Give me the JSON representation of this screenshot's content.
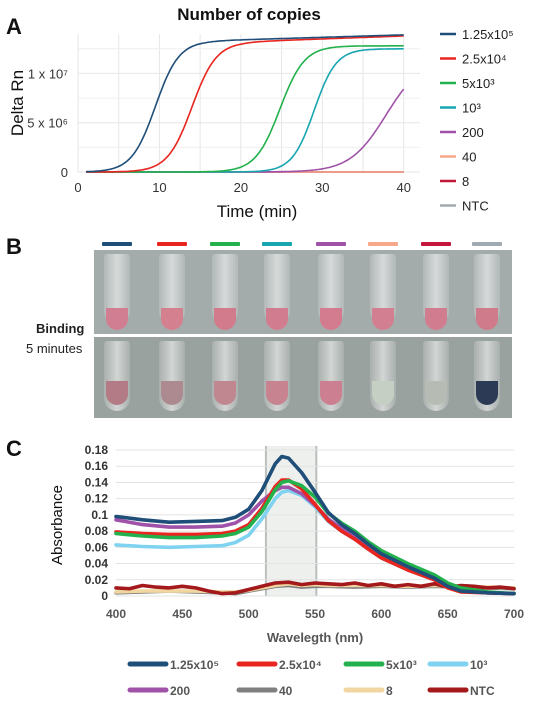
{
  "panels": {
    "a": "A",
    "b": "B",
    "c": "C"
  },
  "panel_b": {
    "binding_label": "Binding",
    "time_label": "5 minutes",
    "tube_colors": [
      "#1f4e79",
      "#e8251f",
      "#22b14c",
      "#17a5b0",
      "#a052a8",
      "#f7a78a",
      "#c4163a",
      "#a0aab0"
    ],
    "top_row_liquid": [
      "#d27e92",
      "#d5808f",
      "#d27b8d",
      "#d27d8f",
      "#d37c8f",
      "#d37f92",
      "#d27d8f",
      "#d07b8c"
    ],
    "bottom_row_liquid": [
      "#b27b86",
      "#ad8a90",
      "#c08790",
      "#c88390",
      "#cc7f90",
      "#c6cfc4",
      "#b6bcb3",
      "#2c3a55"
    ]
  },
  "chart_data": [
    {
      "type": "line",
      "title": "Number of copies",
      "xlabel": "Time (min)",
      "ylabel": "Delta Rn",
      "xlim": [
        0,
        42
      ],
      "ylim": [
        0,
        14000000
      ],
      "x_ticks": [
        0,
        10,
        20,
        30,
        40
      ],
      "y_ticks": [
        {
          "value": 0,
          "label": "0"
        },
        {
          "value": 5000000,
          "label": "5 x 10⁶"
        },
        {
          "value": 10000000,
          "label": "1 x 10⁷"
        }
      ],
      "grid": true,
      "legend_position": "right",
      "series": [
        {
          "name": "1.25x10⁵",
          "color": "#1f4e79",
          "sigmoid": {
            "max": 13300000,
            "mid": 9.5,
            "slope": 1.45,
            "drift": 25000
          }
        },
        {
          "name": "2.5x10⁴",
          "color": "#e8251f",
          "sigmoid": {
            "max": 13200000,
            "mid": 14.0,
            "slope": 1.5,
            "drift": 30000
          }
        },
        {
          "name": "5x10³",
          "color": "#22b14c",
          "sigmoid": {
            "max": 12800000,
            "mid": 24.8,
            "slope": 1.5,
            "drift": 0
          }
        },
        {
          "name": "10³",
          "color": "#17a5b0",
          "sigmoid": {
            "max": 12500000,
            "mid": 29.0,
            "slope": 1.35,
            "drift": 0
          }
        },
        {
          "name": "200",
          "color": "#a052a8",
          "sigmoid": {
            "max": 11500000,
            "mid": 37.8,
            "slope": 2.2,
            "drift": 0
          }
        },
        {
          "name": "40",
          "color": "#f7a78a",
          "sigmoid": {
            "max": 0,
            "mid": 0,
            "slope": 1,
            "drift": 0
          }
        },
        {
          "name": "8",
          "color": "#c4163a",
          "sigmoid": {
            "max": 0,
            "mid": 0,
            "slope": 1,
            "drift": 0
          }
        },
        {
          "name": "NTC",
          "color": "#a0aab0",
          "sigmoid": {
            "max": 0,
            "mid": 0,
            "slope": 1,
            "drift": 0
          }
        }
      ],
      "x_start": 1,
      "x_end": 40
    },
    {
      "type": "line",
      "xlabel": "Wavelegth (nm)",
      "ylabel": "Absorbance",
      "xlim": [
        400,
        700
      ],
      "ylim": [
        0,
        0.18
      ],
      "x_ticks": [
        400,
        450,
        500,
        550,
        600,
        650,
        700
      ],
      "y_ticks": [
        0,
        0.02,
        0.04,
        0.06,
        0.08,
        0.1,
        0.12,
        0.14,
        0.16,
        0.18
      ],
      "y_tick_labels": [
        "0",
        "0.02",
        "0.04",
        "0.06",
        "0.08",
        "0.1",
        "0.12",
        "0.14",
        "0.16",
        "0.18"
      ],
      "highlight_band": [
        513,
        551
      ],
      "grid": true,
      "legend_position": "bottom",
      "series": [
        {
          "name": "1.25x10⁵",
          "color": "#1f4e79",
          "x": [
            400,
            420,
            440,
            460,
            480,
            490,
            500,
            510,
            520,
            525,
            530,
            540,
            550,
            560,
            570,
            580,
            590,
            600,
            620,
            640,
            650,
            660,
            680,
            700
          ],
          "y": [
            0.098,
            0.094,
            0.091,
            0.092,
            0.093,
            0.097,
            0.107,
            0.13,
            0.163,
            0.172,
            0.17,
            0.152,
            0.128,
            0.103,
            0.088,
            0.077,
            0.064,
            0.052,
            0.036,
            0.022,
            0.012,
            0.006,
            0.004,
            0.003
          ]
        },
        {
          "name": "2.5x10⁴",
          "color": "#e8251f",
          "x": [
            400,
            420,
            440,
            460,
            480,
            490,
            500,
            510,
            520,
            525,
            530,
            540,
            550,
            560,
            570,
            580,
            590,
            600,
            620,
            640,
            650,
            660,
            680,
            700
          ],
          "y": [
            0.079,
            0.077,
            0.076,
            0.076,
            0.077,
            0.08,
            0.088,
            0.108,
            0.135,
            0.143,
            0.143,
            0.132,
            0.113,
            0.093,
            0.08,
            0.07,
            0.058,
            0.047,
            0.032,
            0.02,
            0.01,
            0.005,
            0.004,
            0.003
          ]
        },
        {
          "name": "5x10³",
          "color": "#22b14c",
          "x": [
            400,
            420,
            440,
            460,
            480,
            490,
            500,
            510,
            520,
            525,
            530,
            540,
            550,
            560,
            570,
            580,
            590,
            600,
            620,
            640,
            650,
            660,
            680,
            700
          ],
          "y": [
            0.077,
            0.074,
            0.072,
            0.072,
            0.074,
            0.077,
            0.085,
            0.104,
            0.131,
            0.14,
            0.142,
            0.136,
            0.122,
            0.102,
            0.09,
            0.08,
            0.067,
            0.056,
            0.04,
            0.026,
            0.016,
            0.01,
            0.005,
            0.003
          ]
        },
        {
          "name": "10³",
          "color": "#7fd3f0",
          "x": [
            400,
            420,
            440,
            460,
            480,
            490,
            500,
            510,
            520,
            525,
            530,
            540,
            550,
            560,
            570,
            580,
            590,
            600,
            620,
            640,
            650,
            660,
            680,
            700
          ],
          "y": [
            0.063,
            0.061,
            0.06,
            0.061,
            0.062,
            0.066,
            0.075,
            0.095,
            0.12,
            0.128,
            0.13,
            0.124,
            0.11,
            0.092,
            0.08,
            0.07,
            0.058,
            0.047,
            0.032,
            0.02,
            0.012,
            0.007,
            0.004,
            0.003
          ]
        },
        {
          "name": "200",
          "color": "#a052a8",
          "x": [
            400,
            420,
            440,
            460,
            480,
            490,
            500,
            510,
            520,
            525,
            530,
            540,
            550,
            560,
            570,
            580,
            590,
            600,
            620,
            640,
            650,
            660,
            680,
            700
          ],
          "y": [
            0.094,
            0.088,
            0.085,
            0.085,
            0.086,
            0.09,
            0.1,
            0.117,
            0.13,
            0.134,
            0.134,
            0.126,
            0.112,
            0.095,
            0.083,
            0.073,
            0.06,
            0.049,
            0.034,
            0.021,
            0.012,
            0.007,
            0.004,
            0.003
          ]
        },
        {
          "name": "40",
          "color": "#7f7f7f",
          "x": [
            400,
            420,
            440,
            460,
            480,
            490,
            500,
            510,
            520,
            530,
            540,
            550,
            560,
            580,
            600,
            620,
            640,
            660,
            680,
            700
          ],
          "y": [
            0.004,
            0.005,
            0.006,
            0.005,
            0.004,
            0.003,
            0.006,
            0.009,
            0.012,
            0.013,
            0.011,
            0.012,
            0.012,
            0.011,
            0.012,
            0.011,
            0.012,
            0.011,
            0.01,
            0.009
          ]
        },
        {
          "name": "8",
          "color": "#f1d6a0",
          "x": [
            400,
            420,
            440,
            460,
            480,
            490,
            500,
            510,
            520,
            530,
            540,
            550,
            560,
            580,
            600,
            620,
            640,
            660,
            680,
            700
          ],
          "y": [
            0.005,
            0.006,
            0.006,
            0.006,
            0.005,
            0.005,
            0.007,
            0.01,
            0.013,
            0.015,
            0.013,
            0.014,
            0.013,
            0.013,
            0.013,
            0.012,
            0.013,
            0.012,
            0.011,
            0.01
          ]
        },
        {
          "name": "NTC",
          "color": "#a3191c",
          "x": [
            400,
            410,
            420,
            430,
            440,
            450,
            460,
            470,
            480,
            490,
            500,
            510,
            520,
            530,
            540,
            550,
            560,
            570,
            580,
            590,
            600,
            610,
            620,
            630,
            640,
            650,
            660,
            670,
            680,
            690,
            700
          ],
          "y": [
            0.01,
            0.009,
            0.013,
            0.011,
            0.01,
            0.012,
            0.01,
            0.006,
            0.003,
            0.004,
            0.008,
            0.012,
            0.016,
            0.017,
            0.014,
            0.016,
            0.015,
            0.014,
            0.016,
            0.013,
            0.015,
            0.012,
            0.014,
            0.012,
            0.015,
            0.011,
            0.013,
            0.012,
            0.01,
            0.011,
            0.009
          ]
        }
      ]
    }
  ]
}
